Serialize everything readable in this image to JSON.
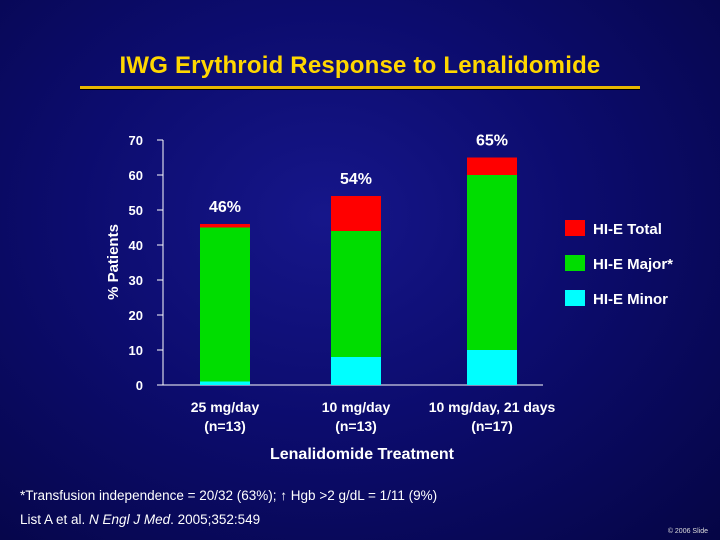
{
  "slide": {
    "title": "IWG Erythroid Response to Lenalidomide",
    "footnote": "*Transfusion independence = 20/32 (63%); ↑ Hgb >2 g/dL = 1/11 (9%)",
    "citation_authors": "List A et al. ",
    "citation_journal": "N Engl J Med",
    "citation_rest": ". 2005;352:549",
    "copyright": "© 2006 Slide"
  },
  "chart_data": {
    "type": "bar",
    "stacked": true,
    "ylabel": "% Patients",
    "xlabel": "Lenalidomide Treatment",
    "ylim": [
      0,
      70
    ],
    "yticks": [
      "0",
      "10",
      "20",
      "30",
      "40",
      "50",
      "60",
      "70"
    ],
    "categories": [
      {
        "line1": "25 mg/day",
        "line2": "(n=13)"
      },
      {
        "line1": "10 mg/day",
        "line2": "(n=13)"
      },
      {
        "line1": "10 mg/day, 21 days",
        "line2": "(n=17)"
      }
    ],
    "series": [
      {
        "name": "HI-E Minor",
        "color": "#00ffff",
        "values": [
          1,
          8,
          10
        ]
      },
      {
        "name": "HI-E Major*",
        "color": "#00dd00",
        "values": [
          44,
          36,
          50
        ]
      },
      {
        "name": "HI-E Total",
        "color": "#ff0000",
        "values": [
          1,
          10,
          5
        ]
      }
    ],
    "legend_order": [
      "HI-E Total",
      "HI-E Major*",
      "HI-E Minor"
    ],
    "bar_labels": [
      "46%",
      "54%",
      "65%"
    ],
    "legend": "right"
  }
}
